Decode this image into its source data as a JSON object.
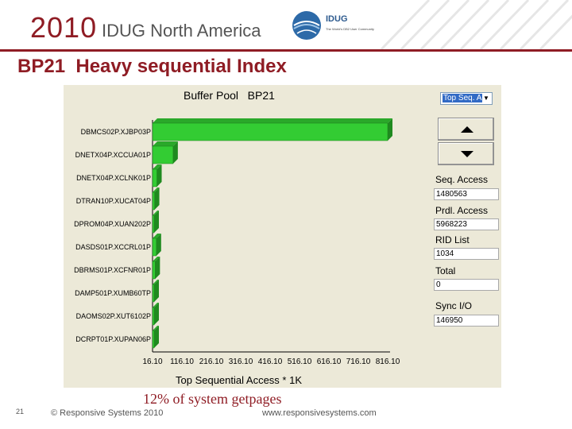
{
  "banner": {
    "year": "2010",
    "title": "IDUG North America",
    "logo_text": "IDUG",
    "logo_subtext": "The World's DB2 User Community",
    "accent": "#8f1c24"
  },
  "slide": {
    "title": "BP21  Heavy sequential Index"
  },
  "app": {
    "chart_title": "Buffer Pool   BP21",
    "combo_value": "Top Seq. A",
    "up_icon": "triangle-up-icon",
    "down_icon": "triangle-down-icon",
    "stats": [
      {
        "label": "Seq. Access",
        "value": "1480563"
      },
      {
        "label": "Prdl. Access",
        "value": "5968223"
      },
      {
        "label": "RID List",
        "value": "1034"
      },
      {
        "label": "Total",
        "value": "0"
      },
      {
        "label": "Sync I/O",
        "value": "146950"
      }
    ]
  },
  "chart_data": {
    "type": "bar",
    "orientation": "horizontal",
    "title": "Buffer Pool   BP21",
    "xlabel": "Top Sequential Access * 1K",
    "ylabel": "",
    "categories": [
      "DBMCS02P.XJBP03P",
      "DNETX04P.XCCUA01P",
      "DNETX04P.XCLNK01P",
      "DTRAN10P.XUCAT04P",
      "DPROM04P.XUAN202P",
      "DASDS01P.XCCRL01P",
      "DBRMS01P.XCFNR01P",
      "DAMP501P.XUMB60TP",
      "DAOMS02P.XUT6102P",
      "DCRPT01P.XUPAN06P"
    ],
    "values": [
      816.1,
      86,
      31,
      23,
      18,
      13,
      9,
      5,
      3,
      2
    ],
    "xticks": [
      "16.10",
      "116.10",
      "216.10",
      "316.10",
      "416.10",
      "516.10",
      "616.10",
      "716.10",
      "816.10"
    ],
    "xlim": [
      16.1,
      816.1
    ],
    "bar_color": "#33cc33",
    "bar_side_color": "#1f8a1f",
    "grid": false
  },
  "footer": {
    "note": "12% of system getpages",
    "page": "21",
    "copyright": "© Responsive Systems 2010",
    "url": "www.responsivesystems.com"
  }
}
